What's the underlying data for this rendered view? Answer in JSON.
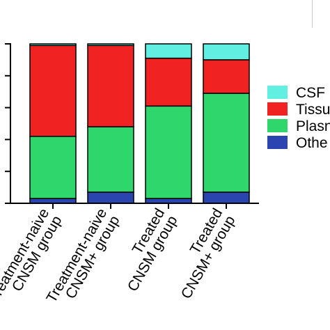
{
  "chart_data": {
    "type": "bar",
    "stacked": true,
    "categories": [
      [
        "Treatment-naive",
        "CNSM group"
      ],
      [
        "Treatment-naive",
        "CNSM+ group"
      ],
      [
        "Treated",
        "CNSM group"
      ],
      [
        "Treated",
        "CNSM+ group"
      ]
    ],
    "series": [
      {
        "name": "Other",
        "color": "#2a45b0",
        "values": [
          3,
          7,
          3,
          7
        ]
      },
      {
        "name": "Plasma",
        "color": "#2fd66b",
        "values": [
          39,
          41,
          58,
          62
        ]
      },
      {
        "name": "Tissue",
        "color": "#f02222",
        "values": [
          57,
          51,
          30,
          21
        ]
      },
      {
        "name": "CSF",
        "color": "#60efe0",
        "values": [
          1,
          1,
          9,
          10
        ]
      }
    ],
    "legend": [
      {
        "label": "CSF",
        "color": "#60efe0"
      },
      {
        "label": "Tissu",
        "color": "#f02222"
      },
      {
        "label": "Plasn",
        "color": "#2fd66b"
      },
      {
        "label": "Othe",
        "color": "#2a45b0"
      }
    ],
    "ylim": [
      0,
      100
    ],
    "yticks": [
      0,
      20,
      40,
      60,
      80,
      100
    ],
    "ytick_labels_visible": false,
    "legend_position": "right",
    "grid": false
  }
}
